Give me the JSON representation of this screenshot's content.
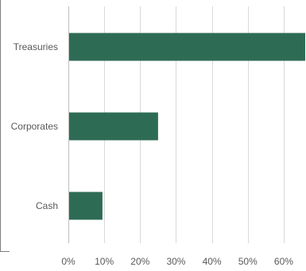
{
  "chart_data": {
    "type": "bar",
    "orientation": "horizontal",
    "categories": [
      "Treasuries",
      "Corporates",
      "Cash"
    ],
    "values": [
      66,
      25,
      9.5
    ],
    "value_unit": "%",
    "xlim": [
      0,
      66
    ],
    "x_ticks": [
      0,
      10,
      20,
      30,
      40,
      50,
      60
    ],
    "x_tick_labels": [
      "0%",
      "10%",
      "20%",
      "30%",
      "40%",
      "50%",
      "60%"
    ],
    "grid": "vertical",
    "colors": {
      "bar": "#2e6b55",
      "grid": "#d9d9d9",
      "axis": "#bfbfbf",
      "text": "#595959",
      "frame": "#7f7f7f"
    }
  }
}
